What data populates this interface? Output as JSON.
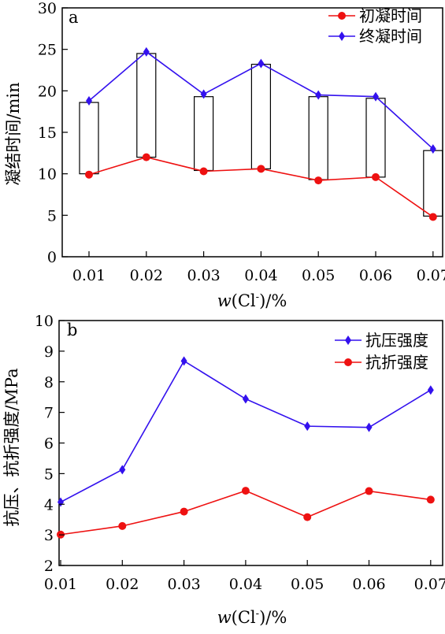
{
  "chart_data": [
    {
      "type": "line",
      "panel_label": "a",
      "categories": [
        "0.01",
        "0.02",
        "0.03",
        "0.04",
        "0.05",
        "0.06",
        "0.07"
      ],
      "xlabel": {
        "italic": "w",
        "open": "(Cl",
        "sup": "-",
        "close": ")/%"
      },
      "ylabel": "凝结时间/min",
      "ylim": [
        0,
        30
      ],
      "yticks": [
        "0",
        "5",
        "10",
        "15",
        "20",
        "25",
        "30"
      ],
      "series": [
        {
          "name": "初凝时间",
          "color": "#ee1111",
          "marker": "circle",
          "values": [
            9.9,
            12.0,
            10.3,
            10.6,
            9.2,
            9.6,
            4.8
          ]
        },
        {
          "name": "终凝时间",
          "color": "#3311ee",
          "marker": "diamond",
          "values": [
            18.8,
            24.7,
            19.6,
            23.3,
            19.5,
            19.3,
            13.0
          ]
        }
      ],
      "boxes": [
        {
          "low": 10.0,
          "high": 18.6
        },
        {
          "low": 12.0,
          "high": 24.5
        },
        {
          "low": 10.4,
          "high": 19.3
        },
        {
          "low": 10.6,
          "high": 23.2
        },
        {
          "low": 9.3,
          "high": 19.3
        },
        {
          "low": 9.6,
          "high": 19.1
        },
        {
          "low": 4.9,
          "high": 12.8
        }
      ],
      "legend_position": "top-right"
    },
    {
      "type": "line",
      "panel_label": "b",
      "categories": [
        "0.01",
        "0.02",
        "0.03",
        "0.04",
        "0.05",
        "0.06",
        "0.07"
      ],
      "xlabel": {
        "italic": "w",
        "open": "(Cl",
        "sup": "-",
        "close": ")/%"
      },
      "ylabel": "抗压、抗折强度/MPa",
      "ylim": [
        2,
        10
      ],
      "yticks": [
        "2",
        "3",
        "4",
        "5",
        "6",
        "7",
        "8",
        "9",
        "10"
      ],
      "series": [
        {
          "name": "抗压强度",
          "color": "#3311ee",
          "marker": "diamond",
          "values": [
            4.07,
            5.13,
            8.68,
            7.44,
            6.55,
            6.51,
            7.73
          ]
        },
        {
          "name": "抗折强度",
          "color": "#ee1111",
          "marker": "circle",
          "values": [
            3.01,
            3.29,
            3.76,
            4.44,
            3.58,
            4.43,
            4.15
          ]
        }
      ],
      "legend_position": "top-right"
    }
  ]
}
